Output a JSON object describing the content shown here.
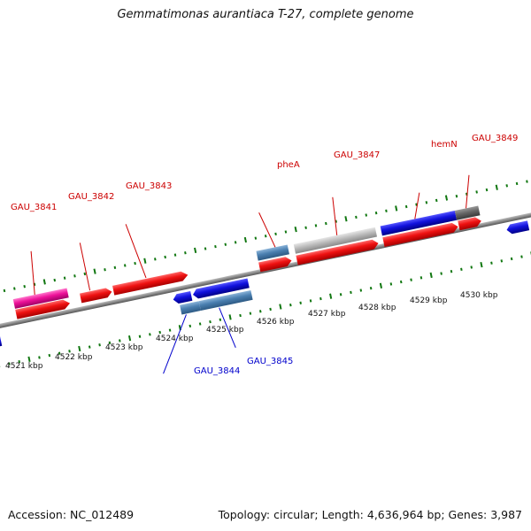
{
  "title": "Gemmatimonas aurantiaca T-27, complete genome",
  "footer": {
    "accession": "Accession: NC_012489",
    "topology": "Topology: circular; Length: 4,636,964 bp; Genes: 3,987"
  },
  "kbp_labels": [
    "4521 kbp",
    "4522 kbp",
    "4523 kbp",
    "4524 kbp",
    "4525 kbp",
    "4526 kbp",
    "4527 kbp",
    "4528 kbp",
    "4529 kbp",
    "4530 kbp"
  ],
  "gene_labels": {
    "forward": [
      "GAU_3841",
      "GAU_3842",
      "GAU_3843",
      "pheA",
      "GAU_3847",
      "hemN",
      "GAU_3849"
    ],
    "reverse": [
      "GAU_3844",
      "GAU_3845"
    ]
  },
  "colors": {
    "label_forward": "#cc0000",
    "label_reverse": "#0000cc",
    "tick": "#117711",
    "backbone": "#888888",
    "cds_red": "#ee1111",
    "gene_blue": "#1111dd",
    "gene_steel": "#4a7fb0",
    "gene_pink": "#ee1199",
    "gene_grey": "#bbbbbb",
    "gene_dark": "#666666"
  }
}
